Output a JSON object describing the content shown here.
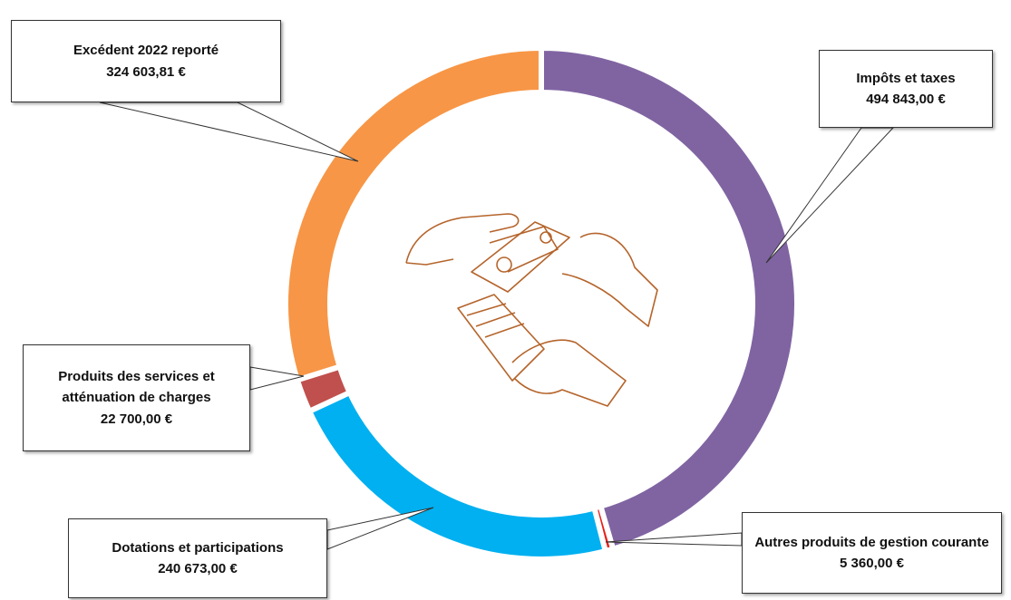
{
  "chart_data": {
    "type": "donut",
    "categories": [
      "Impôts et taxes",
      "Autres produits de gestion courante",
      "Dotations et participations",
      "Produits des services et atténuation de charges",
      "Excédent 2022 reporté"
    ],
    "values": [
      494843,
      5360,
      240673,
      22700,
      324603.81
    ],
    "value_labels": [
      "494 843,00 €",
      "5 360,00 €",
      "240 673,00 €",
      "22 700,00 €",
      "324 603,81 €"
    ],
    "colors": [
      "#8064a2",
      "#e8201c",
      "#00b0f0",
      "#c0504d",
      "#f79646"
    ]
  }
}
